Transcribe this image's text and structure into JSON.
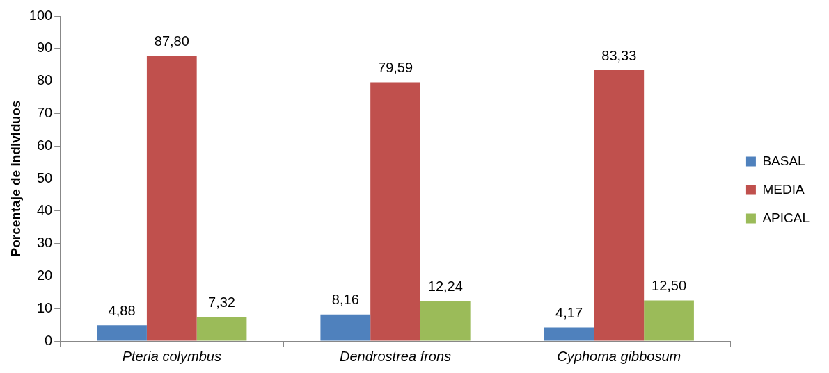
{
  "chart_data": {
    "type": "bar",
    "ylabel": "Porcentaje de individuos",
    "categories": [
      "Pteria colymbus",
      "Dendrostrea frons",
      "Cyphoma gibbosum"
    ],
    "series": [
      {
        "name": "BASAL",
        "color": "#4f81bd",
        "values": [
          4.88,
          8.16,
          4.17
        ],
        "value_labels": [
          "4,88",
          "8,16",
          "4,17"
        ]
      },
      {
        "name": "MEDIA",
        "color": "#c0504d",
        "values": [
          87.8,
          79.59,
          83.33
        ],
        "value_labels": [
          "87,80",
          "79,59",
          "83,33"
        ]
      },
      {
        "name": "APICAL",
        "color": "#9bbb59",
        "values": [
          7.32,
          12.24,
          12.5
        ],
        "value_labels": [
          "7,32",
          "12,24",
          "12,50"
        ]
      }
    ],
    "ylim": [
      0,
      100
    ],
    "yticks": [
      0,
      10,
      20,
      30,
      40,
      50,
      60,
      70,
      80,
      90,
      100
    ],
    "legend": "right"
  }
}
